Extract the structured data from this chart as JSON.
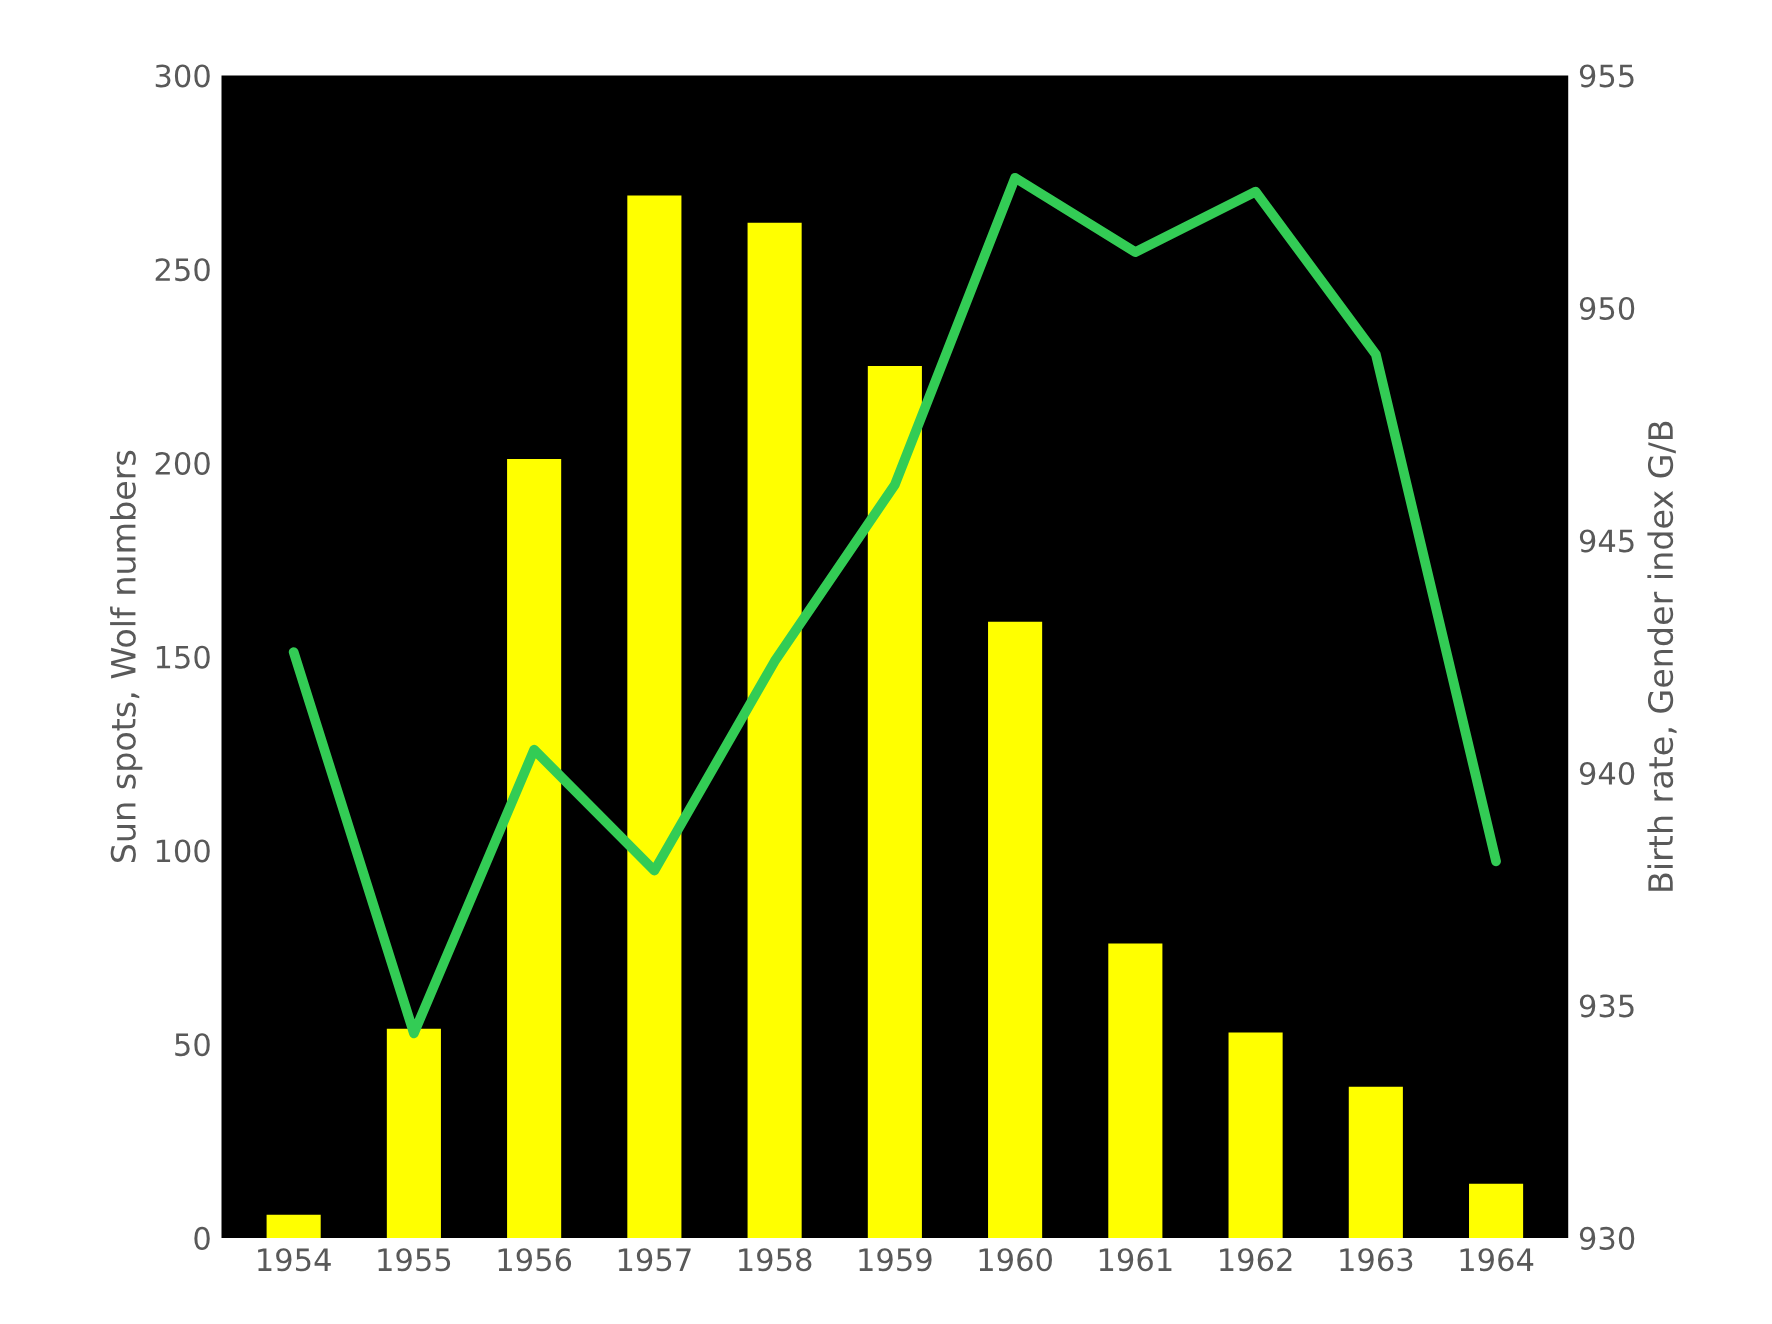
{
  "chart_data": {
    "type": "bar",
    "categories": [
      "1954",
      "1955",
      "1956",
      "1957",
      "1958",
      "1959",
      "1960",
      "1961",
      "1962",
      "1963",
      "1964"
    ],
    "ylabel": "Sun spots, Wolf numbers",
    "y2label": "Birth rate, Gender index G/B",
    "ylim": [
      0,
      300
    ],
    "yticks": [
      0,
      50,
      100,
      150,
      200,
      250,
      300
    ],
    "y2lim": [
      930,
      955
    ],
    "y2ticks": [
      930,
      935,
      940,
      945,
      950,
      955
    ],
    "grid": false,
    "legend": false,
    "series": [
      {
        "type": "bar",
        "color": "#ffff00",
        "values": [
          6,
          54,
          201,
          269,
          262,
          225,
          159,
          76,
          53,
          39,
          14
        ]
      },
      {
        "type": "line",
        "axis": "y2",
        "color": "#33cc55",
        "marker": "none",
        "line_style": "solid",
        "values": [
          942.6,
          934.4,
          940.5,
          937.9,
          942.4,
          946.2,
          952.8,
          951.2,
          952.5,
          949.0,
          938.1
        ]
      }
    ]
  }
}
